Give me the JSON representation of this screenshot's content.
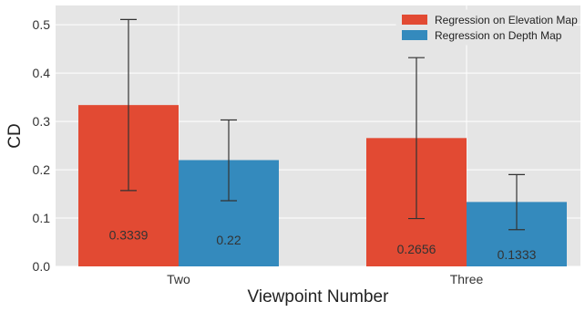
{
  "chart_data": {
    "type": "bar",
    "title": "",
    "xlabel": "Viewpoint Number",
    "ylabel": "CD",
    "categories": [
      "Two",
      "Three"
    ],
    "ylim": [
      0,
      0.54
    ],
    "yticks": [
      0.0,
      0.1,
      0.2,
      0.3,
      0.4,
      0.5
    ],
    "ytick_labels": [
      "0.0",
      "0.1",
      "0.2",
      "0.3",
      "0.4",
      "0.5"
    ],
    "grid": true,
    "legend_position": "top-right",
    "series": [
      {
        "name": "Regression on Elevation Map",
        "color": "#e24a33",
        "values": [
          0.3339,
          0.2656
        ],
        "value_labels": [
          "0.3339",
          "0.2656"
        ],
        "error_low": [
          0.157,
          0.099
        ],
        "error_high": [
          0.511,
          0.432
        ]
      },
      {
        "name": "Regression on Depth Map",
        "color": "#348abd",
        "values": [
          0.22,
          0.1333
        ],
        "value_labels": [
          "0.22",
          "0.1333"
        ],
        "error_low": [
          0.136,
          0.076
        ],
        "error_high": [
          0.303,
          0.19
        ]
      }
    ],
    "background_color": "#e5e5e5",
    "grid_color": "#ffffff"
  }
}
